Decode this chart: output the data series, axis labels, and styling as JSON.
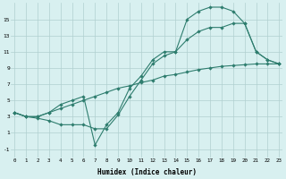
{
  "line1_x": [
    0,
    1,
    2,
    3,
    4,
    5,
    6,
    7,
    8,
    9,
    10,
    11,
    12,
    13,
    14,
    15,
    16,
    17,
    18,
    19,
    20,
    21,
    22,
    23
  ],
  "line1_y": [
    3.5,
    3.0,
    3.0,
    3.5,
    4.5,
    5.0,
    5.5,
    -0.5,
    2.0,
    3.5,
    6.5,
    8.0,
    10.0,
    11.0,
    11.0,
    15.0,
    16.0,
    16.5,
    16.5,
    16.0,
    14.5,
    11.0,
    10.0,
    9.5
  ],
  "line2_x": [
    0,
    1,
    2,
    3,
    4,
    5,
    6,
    7,
    8,
    9,
    10,
    11,
    12,
    13,
    14,
    15,
    16,
    17,
    18,
    19,
    20,
    21,
    22,
    23
  ],
  "line2_y": [
    3.5,
    3.0,
    2.8,
    2.5,
    2.0,
    2.0,
    2.0,
    1.5,
    1.5,
    3.2,
    5.5,
    7.5,
    9.5,
    10.5,
    11.0,
    12.5,
    13.5,
    14.0,
    14.0,
    14.5,
    14.5,
    11.0,
    10.0,
    9.5
  ],
  "line3_x": [
    0,
    1,
    2,
    3,
    4,
    5,
    6,
    7,
    8,
    9,
    10,
    11,
    12,
    13,
    14,
    15,
    16,
    17,
    18,
    19,
    20,
    21,
    22,
    23
  ],
  "line3_y": [
    3.5,
    3.0,
    3.0,
    3.5,
    4.0,
    4.5,
    5.0,
    5.5,
    6.0,
    6.5,
    6.8,
    7.2,
    7.5,
    8.0,
    8.2,
    8.5,
    8.8,
    9.0,
    9.2,
    9.3,
    9.4,
    9.5,
    9.5,
    9.5
  ],
  "line_color": "#2e7d6e",
  "bg_color": "#d8f0f0",
  "grid_color": "#b0d0d0",
  "xlabel": "Humidex (Indice chaleur)",
  "yticks": [
    -1,
    1,
    3,
    5,
    7,
    9,
    11,
    13,
    15
  ],
  "xticks": [
    0,
    1,
    2,
    3,
    4,
    5,
    6,
    7,
    8,
    9,
    10,
    11,
    12,
    13,
    14,
    15,
    16,
    17,
    18,
    19,
    20,
    21,
    22,
    23
  ],
  "xlim": [
    -0.3,
    23.3
  ],
  "ylim": [
    -2.0,
    17.0
  ]
}
